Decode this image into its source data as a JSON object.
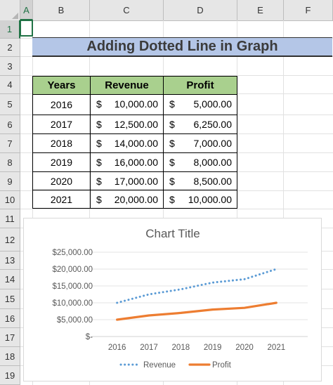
{
  "columns": [
    "A",
    "B",
    "C",
    "D",
    "E",
    "F"
  ],
  "rows": [
    "1",
    "2",
    "3",
    "4",
    "5",
    "6",
    "7",
    "8",
    "9",
    "10",
    "11",
    "12",
    "13",
    "14",
    "15",
    "16",
    "17",
    "18",
    "19"
  ],
  "title": "Adding Dotted Line in Graph",
  "table": {
    "headers": [
      "Years",
      "Revenue",
      "Profit"
    ],
    "currency": "$",
    "rows": [
      {
        "year": "2016",
        "revenue": "10,000.00",
        "profit": "5,000.00"
      },
      {
        "year": "2017",
        "revenue": "12,500.00",
        "profit": "6,250.00"
      },
      {
        "year": "2018",
        "revenue": "14,000.00",
        "profit": "7,000.00"
      },
      {
        "year": "2019",
        "revenue": "16,000.00",
        "profit": "8,000.00"
      },
      {
        "year": "2020",
        "revenue": "17,000.00",
        "profit": "8,500.00"
      },
      {
        "year": "2021",
        "revenue": "20,000.00",
        "profit": "10,000.00"
      }
    ]
  },
  "colors": {
    "revenue": "#5b9bd5",
    "profit": "#ed7d31",
    "header_fill": "#a9d08e",
    "title_fill": "#b4c6e7",
    "selection": "#217346"
  },
  "chart_data": {
    "type": "line",
    "title": "Chart Title",
    "categories": [
      "2016",
      "2017",
      "2018",
      "2019",
      "2020",
      "2021"
    ],
    "series": [
      {
        "name": "Revenue",
        "values": [
          10000,
          12500,
          14000,
          16000,
          17000,
          20000
        ],
        "style": "dotted"
      },
      {
        "name": "Profit",
        "values": [
          5000,
          6250,
          7000,
          8000,
          8500,
          10000
        ],
        "style": "solid"
      }
    ],
    "ylim": [
      0,
      25000
    ],
    "yticks": [
      "$-",
      "$5,000.00",
      "$10,000.00",
      "$15,000.00",
      "$20,000.00",
      "$25,000.00"
    ],
    "grid": true,
    "legend": "bottom"
  }
}
